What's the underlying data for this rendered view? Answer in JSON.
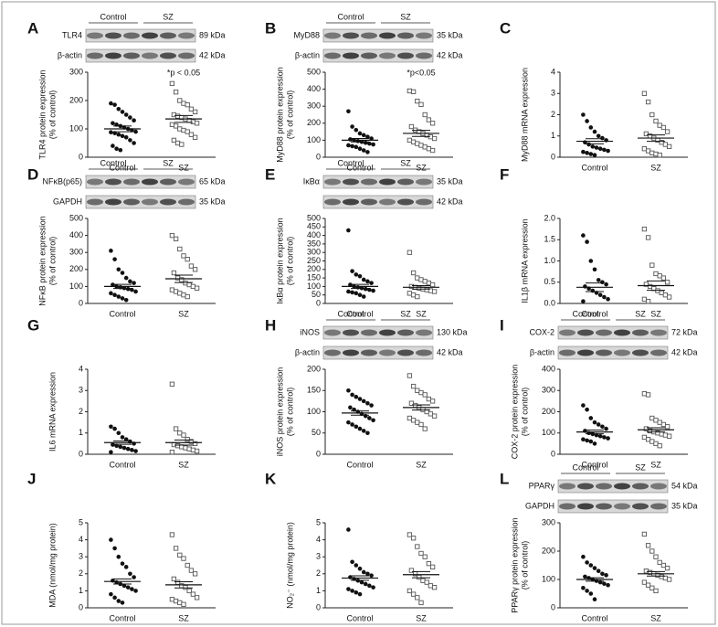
{
  "chart_data": [
    {
      "type": "scatter",
      "panel": "A",
      "ylabel": [
        "TLR4 protein expression",
        "(% of control)"
      ],
      "ylim": [
        0,
        300
      ],
      "yticks": [
        0,
        100,
        200,
        300
      ],
      "categories": [
        "Control",
        "SZ"
      ],
      "annotation": "*p < 0.05",
      "blot": {
        "groups": [
          "Control",
          "SZ"
        ],
        "rows": [
          {
            "protein": "TLR4",
            "size": "89 kDa"
          },
          {
            "protein": "β-actin",
            "size": "42 kDa"
          }
        ]
      },
      "series": [
        {
          "name": "Control",
          "color": "#111111",
          "values": [
            190,
            185,
            170,
            160,
            150,
            140,
            130,
            120,
            115,
            110,
            105,
            100,
            95,
            90,
            88,
            85,
            80,
            75,
            70,
            60,
            50,
            40,
            30,
            25
          ],
          "mean": 100,
          "sem": 10
        },
        {
          "name": "SZ",
          "color": "#555555",
          "values": [
            260,
            230,
            200,
            190,
            185,
            170,
            160,
            150,
            145,
            140,
            135,
            130,
            125,
            120,
            115,
            110,
            100,
            95,
            90,
            80,
            70,
            60,
            50,
            45
          ],
          "mean": 135,
          "sem": 12
        }
      ]
    },
    {
      "type": "scatter",
      "panel": "B",
      "ylabel": [
        "MyD88 protein expression",
        "(% of control)"
      ],
      "ylim": [
        0,
        500
      ],
      "yticks": [
        0,
        100,
        200,
        300,
        400,
        500
      ],
      "categories": [
        "Control",
        "SZ"
      ],
      "annotation": "*p<0.05",
      "blot": {
        "groups": [
          "Control",
          "SZ"
        ],
        "rows": [
          {
            "protein": "MyD88",
            "size": "35 kDa"
          },
          {
            "protein": "β-actin",
            "size": "42 kDa"
          }
        ]
      },
      "series": [
        {
          "name": "Control",
          "color": "#111111",
          "values": [
            270,
            180,
            160,
            140,
            130,
            120,
            110,
            105,
            100,
            95,
            90,
            85,
            80,
            75,
            70,
            65,
            60,
            50,
            40,
            30
          ],
          "mean": 100,
          "sem": 10
        },
        {
          "name": "SZ",
          "color": "#555555",
          "values": [
            390,
            385,
            330,
            310,
            250,
            220,
            200,
            180,
            160,
            150,
            140,
            130,
            120,
            110,
            100,
            90,
            80,
            70,
            60,
            50,
            40
          ],
          "mean": 140,
          "sem": 18
        }
      ]
    },
    {
      "type": "scatter",
      "panel": "C",
      "ylabel": [
        "MyD88 mRNA expression"
      ],
      "ylim": [
        0,
        4
      ],
      "yticks": [
        0,
        1,
        2,
        3,
        4
      ],
      "categories": [
        "Control",
        "SZ"
      ],
      "series": [
        {
          "name": "Control",
          "color": "#111111",
          "values": [
            2.0,
            1.7,
            1.4,
            1.2,
            1.0,
            0.9,
            0.8,
            0.7,
            0.6,
            0.5,
            0.45,
            0.4,
            0.35,
            0.3,
            0.25,
            0.2,
            0.15,
            0.1
          ],
          "mean": 0.75,
          "sem": 0.12
        },
        {
          "name": "SZ",
          "color": "#555555",
          "values": [
            3.0,
            2.6,
            2.0,
            1.7,
            1.5,
            1.4,
            1.2,
            1.1,
            1.0,
            0.9,
            0.8,
            0.7,
            0.6,
            0.5,
            0.4,
            0.3,
            0.2,
            0.15,
            0.1
          ],
          "mean": 0.9,
          "sem": 0.15
        }
      ]
    },
    {
      "type": "scatter",
      "panel": "D",
      "ylabel": [
        "NFκB protein expression",
        "(% of control)"
      ],
      "ylim": [
        0,
        500
      ],
      "yticks": [
        0,
        100,
        200,
        300,
        400,
        500
      ],
      "categories": [
        "Control",
        "SZ"
      ],
      "blot": {
        "groups": [
          "Control",
          "SZ"
        ],
        "rows": [
          {
            "protein": "NFκB(p65)",
            "size": "65 kDa"
          },
          {
            "protein": "GAPDH",
            "size": "35 kDa"
          }
        ]
      },
      "series": [
        {
          "name": "Control",
          "color": "#111111",
          "values": [
            310,
            260,
            200,
            180,
            150,
            130,
            120,
            110,
            100,
            95,
            90,
            85,
            80,
            70,
            60,
            50,
            40,
            30,
            20
          ],
          "mean": 100,
          "sem": 12
        },
        {
          "name": "SZ",
          "color": "#555555",
          "values": [
            400,
            380,
            320,
            280,
            260,
            220,
            200,
            180,
            150,
            140,
            120,
            110,
            100,
            90,
            80,
            70,
            60,
            50,
            40
          ],
          "mean": 145,
          "sem": 22
        }
      ]
    },
    {
      "type": "scatter",
      "panel": "E",
      "ylabel": [
        "IκBα protein expression",
        "(% of control)"
      ],
      "ylim": [
        0,
        500
      ],
      "yticks": [
        0,
        50,
        100,
        150,
        200,
        250,
        300,
        350,
        400,
        450,
        500
      ],
      "categories": [
        "Control",
        "SZ"
      ],
      "blot": {
        "groups": [
          "Control",
          "SZ"
        ],
        "rows": [
          {
            "protein": "IκBα",
            "size": "35 kDa"
          },
          {
            "size": "42 kDa"
          }
        ]
      },
      "series": [
        {
          "name": "Control",
          "color": "#111111",
          "values": [
            430,
            190,
            170,
            160,
            140,
            130,
            120,
            110,
            100,
            95,
            90,
            85,
            80,
            75,
            70,
            65,
            60,
            50,
            40
          ],
          "mean": 100,
          "sem": 12
        },
        {
          "name": "SZ",
          "color": "#555555",
          "values": [
            300,
            180,
            150,
            140,
            130,
            120,
            110,
            100,
            95,
            90,
            85,
            80,
            75,
            70,
            60,
            50,
            40
          ],
          "mean": 95,
          "sem": 10
        }
      ]
    },
    {
      "type": "scatter",
      "panel": "F",
      "ylabel": [
        "IL1β mRNA  expression"
      ],
      "ylim": [
        0,
        2
      ],
      "yticks": [
        {
          "value": 0,
          "label": "0.0"
        },
        0.5,
        {
          "value": 1,
          "label": "1.0"
        },
        1.5,
        {
          "value": 2,
          "label": "2.0"
        }
      ],
      "categories": [
        "Control",
        "SZ"
      ],
      "series": [
        {
          "name": "Control",
          "color": "#111111",
          "values": [
            1.6,
            1.45,
            1.0,
            0.8,
            0.55,
            0.5,
            0.45,
            0.4,
            0.35,
            0.3,
            0.25,
            0.2,
            0.15,
            0.1,
            0.05
          ],
          "mean": 0.38,
          "sem": 0.1
        },
        {
          "name": "SZ",
          "color": "#555555",
          "values": [
            1.75,
            1.55,
            0.9,
            0.7,
            0.65,
            0.6,
            0.5,
            0.45,
            0.4,
            0.35,
            0.3,
            0.25,
            0.2,
            0.15,
            0.1,
            0.05
          ],
          "mean": 0.42,
          "sem": 0.11
        }
      ]
    },
    {
      "type": "scatter",
      "panel": "G",
      "ylabel": [
        "IL6 mRNA  expression"
      ],
      "ylim": [
        0,
        4
      ],
      "yticks": [
        0,
        1,
        2,
        3,
        4
      ],
      "categories": [
        "Control",
        "SZ"
      ],
      "series": [
        {
          "name": "Control",
          "color": "#111111",
          "values": [
            1.3,
            1.2,
            1.0,
            0.8,
            0.7,
            0.6,
            0.5,
            0.45,
            0.4,
            0.35,
            0.3,
            0.25,
            0.2,
            0.15,
            0.1
          ],
          "mean": 0.55,
          "sem": 0.08
        },
        {
          "name": "SZ",
          "color": "#555555",
          "values": [
            3.3,
            1.2,
            1.0,
            0.9,
            0.7,
            0.6,
            0.5,
            0.45,
            0.4,
            0.35,
            0.3,
            0.25,
            0.2,
            0.15,
            0.1
          ],
          "mean": 0.55,
          "sem": 0.12
        }
      ]
    },
    {
      "type": "scatter",
      "panel": "H",
      "ylabel": [
        "iNOS protein expression",
        "(% of control)"
      ],
      "ylim": [
        0,
        200
      ],
      "yticks": [
        0,
        50,
        100,
        150,
        200
      ],
      "categories": [
        "Control",
        "SZ"
      ],
      "blot": {
        "groups": [
          "Control",
          "SZ"
        ],
        "rows": [
          {
            "protein": "iNOS",
            "size": "130 kDa"
          },
          {
            "protein": "β-actin",
            "size": "42 kDa"
          }
        ]
      },
      "series": [
        {
          "name": "Control",
          "color": "#111111",
          "values": [
            150,
            140,
            135,
            130,
            125,
            120,
            115,
            110,
            105,
            100,
            95,
            90,
            85,
            80,
            75,
            70,
            65,
            60,
            55,
            50
          ],
          "mean": 97,
          "sem": 5
        },
        {
          "name": "SZ",
          "color": "#555555",
          "values": [
            185,
            160,
            150,
            145,
            140,
            130,
            125,
            120,
            115,
            110,
            105,
            100,
            95,
            90,
            85,
            80,
            75,
            70,
            60
          ],
          "mean": 110,
          "sem": 6
        }
      ]
    },
    {
      "type": "scatter",
      "panel": "I",
      "ylabel": [
        "COX-2 protein expression",
        "(% of control)"
      ],
      "ylim": [
        0,
        400
      ],
      "yticks": [
        0,
        100,
        200,
        300,
        400
      ],
      "categories": [
        "Control",
        "SZ"
      ],
      "blot": {
        "groups": [
          "Control",
          "SZ"
        ],
        "rows": [
          {
            "protein": "COX-2",
            "size": "72 kDa"
          },
          {
            "protein": "β-actin",
            "size": "42 kDa"
          }
        ]
      },
      "series": [
        {
          "name": "Control",
          "color": "#111111",
          "values": [
            230,
            210,
            170,
            150,
            140,
            130,
            120,
            110,
            100,
            95,
            90,
            85,
            80,
            75,
            70,
            65,
            60,
            50
          ],
          "mean": 105,
          "sem": 9
        },
        {
          "name": "SZ",
          "color": "#555555",
          "values": [
            285,
            280,
            170,
            160,
            150,
            140,
            130,
            120,
            110,
            105,
            100,
            95,
            90,
            85,
            80,
            70,
            60,
            50,
            40
          ],
          "mean": 115,
          "sem": 10
        }
      ]
    },
    {
      "type": "scatter",
      "panel": "J",
      "ylabel": [
        "MDA (nmol/mg protein)"
      ],
      "ylim": [
        0,
        5
      ],
      "yticks": [
        0,
        1,
        2,
        3,
        4,
        5
      ],
      "categories": [
        "Control",
        "SZ"
      ],
      "series": [
        {
          "name": "Control",
          "color": "#111111",
          "values": [
            4.0,
            3.5,
            3.0,
            2.6,
            2.4,
            2.0,
            1.8,
            1.6,
            1.5,
            1.4,
            1.3,
            1.2,
            1.1,
            1.0,
            0.8,
            0.6,
            0.4,
            0.3
          ],
          "mean": 1.55,
          "sem": 0.15
        },
        {
          "name": "SZ",
          "color": "#555555",
          "values": [
            4.3,
            3.5,
            3.1,
            2.9,
            2.5,
            2.2,
            2.0,
            1.7,
            1.5,
            1.3,
            1.2,
            1.0,
            0.8,
            0.6,
            0.5,
            0.4,
            0.3,
            0.2
          ],
          "mean": 1.35,
          "sem": 0.18
        }
      ]
    },
    {
      "type": "scatter",
      "panel": "K",
      "ylabel": [
        "NO₂⁻ (nmol/mg protein)"
      ],
      "ylim": [
        0,
        5
      ],
      "yticks": [
        0,
        1,
        2,
        3,
        4,
        5
      ],
      "categories": [
        "Control",
        "SZ"
      ],
      "series": [
        {
          "name": "Control",
          "color": "#111111",
          "values": [
            4.6,
            2.7,
            2.5,
            2.3,
            2.1,
            2.0,
            1.9,
            1.8,
            1.7,
            1.6,
            1.5,
            1.4,
            1.3,
            1.2,
            1.1,
            1.0,
            0.9,
            0.8
          ],
          "mean": 1.75,
          "sem": 0.13
        },
        {
          "name": "SZ",
          "color": "#555555",
          "values": [
            4.3,
            4.1,
            3.6,
            3.2,
            3.0,
            2.6,
            2.4,
            2.2,
            2.0,
            1.8,
            1.6,
            1.5,
            1.3,
            1.2,
            1.0,
            0.8,
            0.6,
            0.3
          ],
          "mean": 1.95,
          "sem": 0.18
        }
      ]
    },
    {
      "type": "scatter",
      "panel": "L",
      "ylabel": [
        "PPARγ protein expression",
        "(% of control)"
      ],
      "ylim": [
        0,
        300
      ],
      "yticks": [
        0,
        100,
        200,
        300
      ],
      "categories": [
        "Control",
        "SZ"
      ],
      "blot": {
        "groups": [
          "Control",
          "SZ"
        ],
        "rows": [
          {
            "protein": "PPARγ",
            "size": "54 kDa"
          },
          {
            "protein": "GAPDH",
            "size": "35 kDa"
          }
        ]
      },
      "series": [
        {
          "name": "Control",
          "color": "#111111",
          "values": [
            180,
            160,
            150,
            140,
            130,
            120,
            115,
            110,
            105,
            100,
            95,
            90,
            85,
            80,
            70,
            60,
            50,
            30
          ],
          "mean": 100,
          "sem": 6
        },
        {
          "name": "SZ",
          "color": "#555555",
          "values": [
            260,
            220,
            200,
            180,
            160,
            150,
            140,
            130,
            125,
            120,
            115,
            110,
            105,
            100,
            90,
            80,
            70,
            60
          ],
          "mean": 120,
          "sem": 8
        }
      ]
    }
  ]
}
